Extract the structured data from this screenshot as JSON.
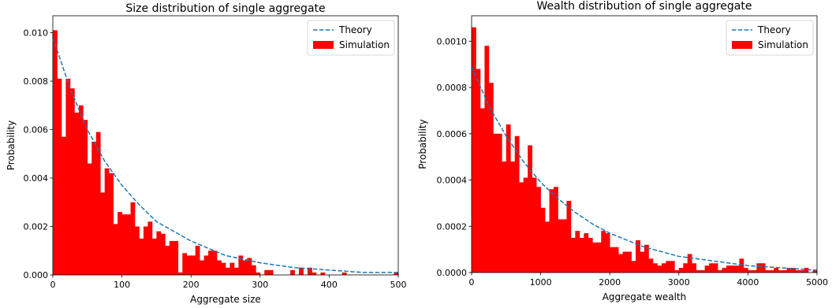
{
  "chart_data": [
    {
      "type": "bar",
      "title": "Size distribution of single aggregate",
      "xlabel": "Aggregate size",
      "ylabel": "Probability",
      "xlim": [
        0,
        500
      ],
      "ylim": [
        0,
        0.0107
      ],
      "xticks": [
        0,
        100,
        200,
        300,
        400,
        500
      ],
      "yticks": [
        0.0,
        0.002,
        0.004,
        0.006,
        0.008,
        0.01
      ],
      "xtick_labels": [
        "0",
        "100",
        "200",
        "300",
        "400",
        "500"
      ],
      "ytick_labels": [
        "0.000",
        "0.002",
        "0.004",
        "0.006",
        "0.008",
        "0.010"
      ],
      "grid": false,
      "legend_position": "upper right",
      "legend": [
        {
          "label": "Theory",
          "style": "dashed-line",
          "color": "#1f77b4"
        },
        {
          "label": "Simulation",
          "style": "patch",
          "color": "#ff0000"
        }
      ],
      "series": [
        {
          "name": "Simulation",
          "type": "bar",
          "color": "#ff0000",
          "bin_start": 0,
          "bin_width": 6.25,
          "values": [
            0.0101,
            0.0081,
            0.0057,
            0.0081,
            0.0077,
            0.0067,
            0.007,
            0.0064,
            0.0046,
            0.0055,
            0.0059,
            0.0034,
            0.0044,
            0.0042,
            0.0021,
            0.0026,
            0.0025,
            0.0025,
            0.003,
            0.002,
            0.0015,
            0.002,
            0.0022,
            0.0015,
            0.0018,
            0.0017,
            0.0012,
            0.0014,
            0.0014,
            0.0001,
            0.0009,
            0.0008,
            0.0008,
            0.0012,
            0.0006,
            0.0008,
            0.001,
            0.001,
            0.0006,
            0.0005,
            0.0003,
            0.0005,
            0.0003,
            0.0008,
            0.0006,
            0.0007,
            0.0004,
            0.0001,
            0.0,
            0.0002,
            0.0002,
            0.0,
            0.0,
            0.0,
            0.0,
            0.0002,
            0.0,
            0.0003,
            0.0,
            0.0003,
            0.0001,
            0.0,
            0.0001,
            0.0,
            0.0,
            0.0,
            0.0,
            0.0001,
            0.0,
            0.0,
            0.0,
            0.0,
            0.0,
            0.0,
            0.0,
            0.0,
            0.0,
            0.0,
            0.0,
            0.0001
          ]
        },
        {
          "name": "Theory",
          "type": "line",
          "style": "dashed",
          "color": "#1f77b4",
          "x": [
            0,
            25,
            50,
            75,
            100,
            125,
            150,
            175,
            200,
            250,
            300,
            350,
            400,
            450,
            500
          ],
          "y": [
            0.0098,
            0.0077,
            0.006,
            0.0047,
            0.0037,
            0.0029,
            0.0022,
            0.0018,
            0.0014,
            0.0008,
            0.0005,
            0.0003,
            0.0002,
            0.0001,
            0.0001
          ]
        }
      ]
    },
    {
      "type": "bar",
      "title": "Wealth distribution of single aggregate",
      "xlabel": "Aggregate wealth",
      "ylabel": "Probability",
      "xlim": [
        0,
        5000
      ],
      "ylim": [
        0,
        0.00111
      ],
      "xticks": [
        0,
        1000,
        2000,
        3000,
        4000,
        5000
      ],
      "yticks": [
        0.0,
        0.0002,
        0.0004,
        0.0006,
        0.0008,
        0.001
      ],
      "xtick_labels": [
        "0",
        "1000",
        "2000",
        "3000",
        "4000",
        "5000"
      ],
      "ytick_labels": [
        "0.0000",
        "0.0002",
        "0.0004",
        "0.0006",
        "0.0008",
        "0.0010"
      ],
      "grid": false,
      "legend_position": "upper right",
      "legend": [
        {
          "label": "Theory",
          "style": "dashed-line",
          "color": "#1f77b4"
        },
        {
          "label": "Simulation",
          "style": "patch",
          "color": "#ff0000"
        }
      ],
      "series": [
        {
          "name": "Simulation",
          "type": "bar",
          "color": "#ff0000",
          "bin_start": 0,
          "bin_width": 62.5,
          "values": [
            0.00106,
            0.00088,
            0.00071,
            0.00098,
            0.00082,
            0.0006,
            0.0006,
            0.00048,
            0.00064,
            0.00048,
            0.00059,
            0.00039,
            0.00041,
            0.00055,
            0.00041,
            0.00037,
            0.00028,
            0.00022,
            0.00036,
            0.00037,
            0.00023,
            0.00023,
            0.00031,
            0.00015,
            0.00018,
            0.00015,
            0.00017,
            0.00015,
            0.00013,
            0.00013,
            0.00018,
            0.00017,
            0.00011,
            0.00011,
            8e-05,
            9e-05,
            9e-05,
            5e-05,
            0.00014,
            9e-05,
            0.00012,
            6e-05,
            4e-05,
            3e-05,
            4e-05,
            5e-05,
            5e-05,
            1e-05,
            2e-05,
            4e-05,
            8e-05,
            4e-05,
            1e-05,
            1e-05,
            3e-05,
            4e-05,
            4e-05,
            1e-05,
            2e-05,
            3e-05,
            3e-05,
            3e-05,
            6e-05,
            2e-05,
            1e-05,
            1e-05,
            4e-05,
            4e-05,
            1e-05,
            1e-05,
            2e-05,
            1e-05,
            1e-05,
            2e-05,
            2e-05,
            1e-05,
            1e-05,
            2e-05,
            0.0,
            1e-05
          ]
        },
        {
          "name": "Theory",
          "type": "line",
          "style": "dashed",
          "color": "#1f77b4",
          "x": [
            0,
            250,
            500,
            750,
            1000,
            1250,
            1500,
            1750,
            2000,
            2500,
            3000,
            3500,
            4000,
            4500,
            5000
          ],
          "y": [
            0.00089,
            0.00072,
            0.00059,
            0.00048,
            0.00039,
            0.00032,
            0.00026,
            0.00021,
            0.00017,
            0.00011,
            7e-05,
            5e-05,
            3e-05,
            2e-05,
            1e-05
          ]
        }
      ]
    }
  ]
}
